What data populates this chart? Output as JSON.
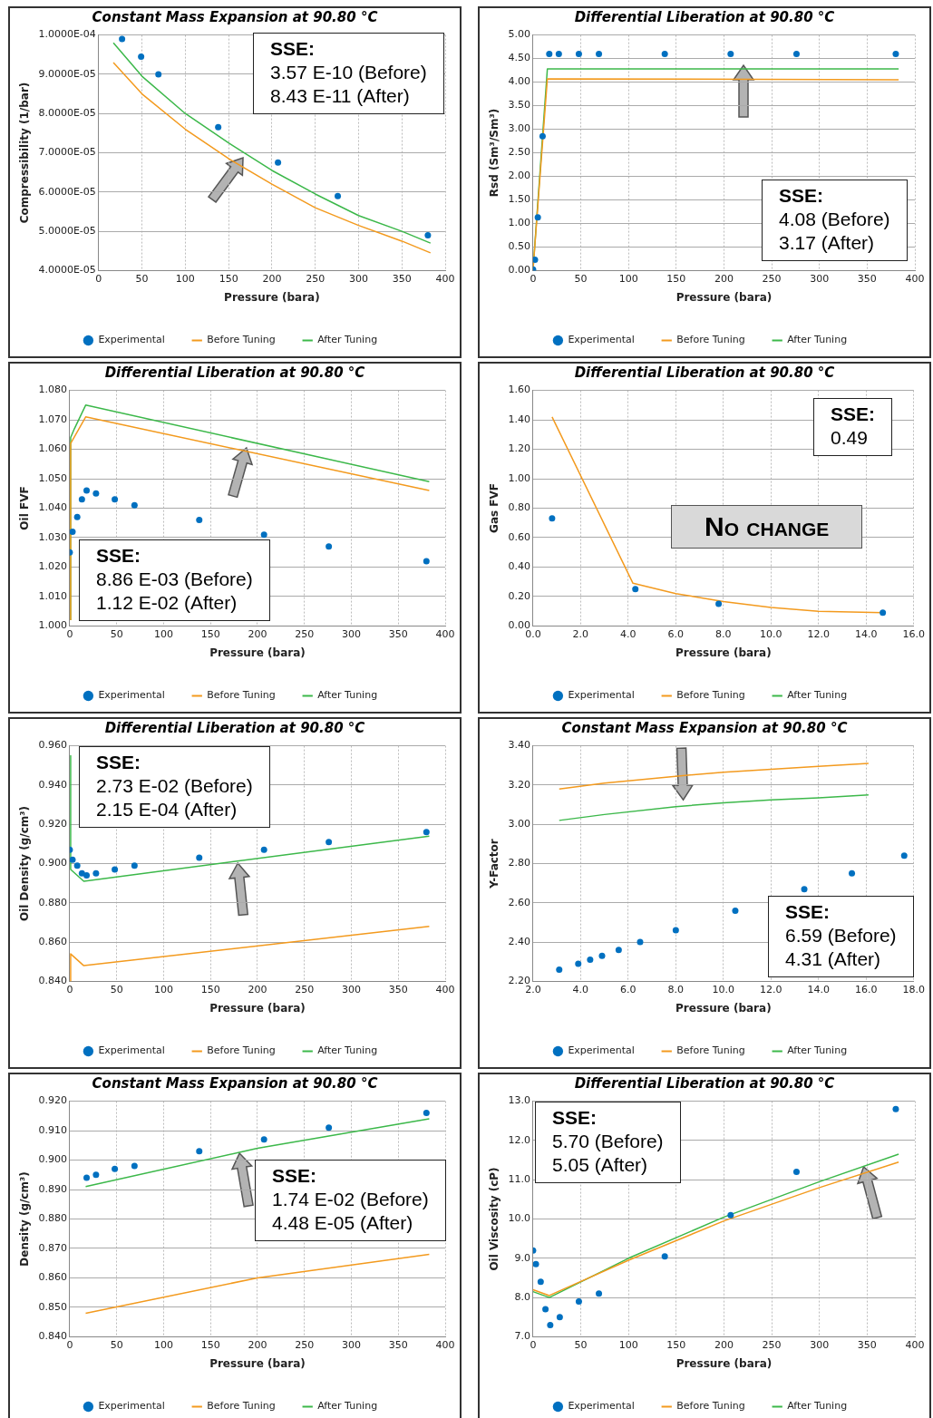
{
  "chart_data": [
    {
      "type": "line",
      "title": "Constant Mass Expansion at 90.80 °C",
      "xlabel": "Pressure (bara)",
      "ylabel": "Compressibility (1/bar)",
      "xlim": [
        0,
        400
      ],
      "xticks": [
        0,
        50,
        100,
        150,
        200,
        250,
        300,
        350,
        400
      ],
      "ylim": [
        4e-05,
        0.0001
      ],
      "yticks": [
        {
          "value": 4e-05,
          "label": "4.0000E-05"
        },
        {
          "value": 5e-05,
          "label": "5.0000E-05"
        },
        {
          "value": 6e-05,
          "label": "6.0000E-05"
        },
        {
          "value": 7e-05,
          "label": "7.0000E-05"
        },
        {
          "value": 8e-05,
          "label": "8.0000E-05"
        },
        {
          "value": 9e-05,
          "label": "9.0000E-05"
        },
        {
          "value": 0.0001,
          "label": "1.0000E-04"
        }
      ],
      "grid": true,
      "legend": "bottom",
      "annotations": [
        "SSE:\n3.57 E-10 (Before)\n8.43 E-11 (After)"
      ],
      "series": [
        {
          "name": "Experimental",
          "type": "scatter",
          "marker": "circle",
          "color": "#0070c0",
          "x": [
            27,
            49,
            69,
            138,
            207,
            276,
            380
          ],
          "values": [
            9.9e-05,
            9.45e-05,
            9e-05,
            7.65e-05,
            6.75e-05,
            5.9e-05,
            4.9e-05
          ]
        },
        {
          "name": "Before Tuning",
          "type": "line",
          "color": "#f39a1e",
          "x": [
            17,
            50,
            100,
            150,
            200,
            250,
            300,
            350,
            383
          ],
          "values": [
            9.3e-05,
            8.5e-05,
            7.6e-05,
            6.85e-05,
            6.2e-05,
            5.6e-05,
            5.15e-05,
            4.75e-05,
            4.45e-05
          ]
        },
        {
          "name": "After Tuning",
          "type": "line",
          "color": "#3cb84a",
          "x": [
            17,
            50,
            100,
            150,
            200,
            250,
            300,
            350,
            383
          ],
          "values": [
            9.8e-05,
            8.95e-05,
            8e-05,
            7.25e-05,
            6.55e-05,
            5.95e-05,
            5.4e-05,
            5e-05,
            4.7e-05
          ]
        }
      ]
    },
    {
      "type": "line",
      "title": "Differential Liberation at 90.80 °C",
      "xlabel": "Pressure (bara)",
      "ylabel": "Rsd (Sm³/Sm³)",
      "xlim": [
        0,
        400
      ],
      "xticks": [
        0,
        50,
        100,
        150,
        200,
        250,
        300,
        350,
        400
      ],
      "ylim": [
        0,
        5
      ],
      "yticks": [
        {
          "value": 0,
          "label": "0.00"
        },
        {
          "value": 0.5,
          "label": "0.50"
        },
        {
          "value": 1,
          "label": "1.00"
        },
        {
          "value": 1.5,
          "label": "1.50"
        },
        {
          "value": 2,
          "label": "2.00"
        },
        {
          "value": 2.5,
          "label": "2.50"
        },
        {
          "value": 3,
          "label": "3.00"
        },
        {
          "value": 3.5,
          "label": "3.50"
        },
        {
          "value": 4,
          "label": "4.00"
        },
        {
          "value": 4.5,
          "label": "4.50"
        },
        {
          "value": 5,
          "label": "5.00"
        }
      ],
      "grid": true,
      "legend": "bottom",
      "annotations": [
        "SSE:\n4.08 (Before)\n3.17 (After)"
      ],
      "series": [
        {
          "name": "Experimental",
          "type": "scatter",
          "marker": "circle",
          "color": "#0070c0",
          "x": [
            0,
            2,
            5,
            10,
            17,
            27,
            48,
            69,
            138,
            207,
            276,
            380
          ],
          "values": [
            0.02,
            0.23,
            1.13,
            2.85,
            4.6,
            4.6,
            4.6,
            4.6,
            4.6,
            4.6,
            4.6,
            4.6
          ]
        },
        {
          "name": "Before Tuning",
          "type": "line",
          "color": "#f39a1e",
          "x": [
            0,
            15,
            383
          ],
          "values": [
            0.02,
            4.07,
            4.05
          ]
        },
        {
          "name": "After Tuning",
          "type": "line",
          "color": "#3cb84a",
          "x": [
            0,
            15,
            383
          ],
          "values": [
            0.02,
            4.28,
            4.28
          ]
        }
      ]
    },
    {
      "type": "line",
      "title": "Differential Liberation at 90.80 °C",
      "xlabel": "Pressure (bara)",
      "ylabel": "Oil FVF",
      "xlim": [
        0,
        400
      ],
      "xticks": [
        0,
        50,
        100,
        150,
        200,
        250,
        300,
        350,
        400
      ],
      "ylim": [
        1,
        1.08
      ],
      "yticks": [
        {
          "value": 1,
          "label": "1.000"
        },
        {
          "value": 1.01,
          "label": "1.010"
        },
        {
          "value": 1.02,
          "label": "1.020"
        },
        {
          "value": 1.03,
          "label": "1.030"
        },
        {
          "value": 1.04,
          "label": "1.040"
        },
        {
          "value": 1.05,
          "label": "1.050"
        },
        {
          "value": 1.06,
          "label": "1.060"
        },
        {
          "value": 1.07,
          "label": "1.070"
        },
        {
          "value": 1.08,
          "label": "1.080"
        }
      ],
      "grid": true,
      "legend": "bottom",
      "annotations": [
        "SSE:\n8.86 E-03 (Before)\n1.12 E-02 (After)"
      ],
      "series": [
        {
          "name": "Experimental",
          "type": "scatter",
          "marker": "circle",
          "color": "#0070c0",
          "x": [
            0,
            3,
            8,
            13,
            18,
            28,
            48,
            69,
            138,
            207,
            276,
            380
          ],
          "values": [
            1.025,
            1.032,
            1.037,
            1.043,
            1.046,
            1.045,
            1.043,
            1.041,
            1.036,
            1.031,
            1.027,
            1.022
          ]
        },
        {
          "name": "Before Tuning",
          "type": "line",
          "color": "#f39a1e",
          "x": [
            1,
            1,
            17,
            383
          ],
          "values": [
            1.002,
            1.062,
            1.071,
            1.046
          ]
        },
        {
          "name": "After Tuning",
          "type": "line",
          "color": "#3cb84a",
          "x": [
            1,
            1,
            5,
            17,
            383
          ],
          "values": [
            1.002,
            1.064,
            1.067,
            1.075,
            1.049
          ]
        }
      ]
    },
    {
      "type": "line",
      "title": "Differential Liberation at 90.80 °C",
      "xlabel": "Pressure (bara)",
      "ylabel": "Gas FVF",
      "xlim": [
        0,
        16
      ],
      "xticks": [
        {
          "value": 0,
          "label": "0.0"
        },
        {
          "value": 2,
          "label": "2.0"
        },
        {
          "value": 4,
          "label": "4.0"
        },
        {
          "value": 6,
          "label": "6.0"
        },
        {
          "value": 8,
          "label": "8.0"
        },
        {
          "value": 10,
          "label": "10.0"
        },
        {
          "value": 12,
          "label": "12.0"
        },
        {
          "value": 14,
          "label": "14.0"
        },
        {
          "value": 16,
          "label": "16.0"
        }
      ],
      "ylim": [
        0,
        1.6
      ],
      "yticks": [
        {
          "value": 0,
          "label": "0.00"
        },
        {
          "value": 0.2,
          "label": "0.20"
        },
        {
          "value": 0.4,
          "label": "0.40"
        },
        {
          "value": 0.6,
          "label": "0.60"
        },
        {
          "value": 0.8,
          "label": "0.80"
        },
        {
          "value": 1,
          "label": "1.00"
        },
        {
          "value": 1.2,
          "label": "1.20"
        },
        {
          "value": 1.4,
          "label": "1.40"
        },
        {
          "value": 1.6,
          "label": "1.60"
        }
      ],
      "grid": true,
      "legend": "bottom",
      "annotations": [
        "SSE:\n0.49",
        "No change"
      ],
      "series": [
        {
          "name": "Experimental",
          "type": "scatter",
          "marker": "circle",
          "color": "#0070c0",
          "x": [
            0.8,
            4.3,
            7.8,
            14.7
          ],
          "values": [
            0.73,
            0.25,
            0.15,
            0.09
          ]
        },
        {
          "name": "Before Tuning",
          "type": "line",
          "color": "#f39a1e",
          "x": [
            0.8,
            4.2,
            6,
            8,
            10,
            12,
            14.7
          ],
          "values": [
            1.42,
            0.29,
            0.22,
            0.165,
            0.125,
            0.1,
            0.09
          ]
        },
        {
          "name": "After Tuning",
          "type": "line",
          "color": "#3cb84a"
        }
      ]
    },
    {
      "type": "line",
      "title": "Differential Liberation at 90.80 °C",
      "xlabel": "Pressure (bara)",
      "ylabel": "Oil Density (g/cm³)",
      "xlim": [
        0,
        400
      ],
      "xticks": [
        0,
        50,
        100,
        150,
        200,
        250,
        300,
        350,
        400
      ],
      "ylim": [
        0.84,
        0.96
      ],
      "yticks": [
        {
          "value": 0.84,
          "label": "0.840"
        },
        {
          "value": 0.86,
          "label": "0.860"
        },
        {
          "value": 0.88,
          "label": "0.880"
        },
        {
          "value": 0.9,
          "label": "0.900"
        },
        {
          "value": 0.92,
          "label": "0.920"
        },
        {
          "value": 0.94,
          "label": "0.940"
        },
        {
          "value": 0.96,
          "label": "0.960"
        }
      ],
      "grid": true,
      "legend": "bottom",
      "annotations": [
        "SSE:\n2.73 E-02 (Before)\n2.15 E-04 (After)"
      ],
      "series": [
        {
          "name": "Experimental",
          "type": "scatter",
          "marker": "circle",
          "color": "#0070c0",
          "x": [
            0,
            3,
            8,
            13,
            18,
            28,
            48,
            69,
            138,
            207,
            276,
            380
          ],
          "values": [
            0.907,
            0.902,
            0.899,
            0.895,
            0.894,
            0.895,
            0.897,
            0.899,
            0.903,
            0.907,
            0.911,
            0.916
          ]
        },
        {
          "name": "Before Tuning",
          "type": "line",
          "color": "#f39a1e",
          "x": [
            1,
            1,
            15,
            383
          ],
          "values": [
            0.84,
            0.854,
            0.848,
            0.868
          ]
        },
        {
          "name": "After Tuning",
          "type": "line",
          "color": "#3cb84a",
          "x": [
            1,
            1,
            15,
            383
          ],
          "values": [
            0.955,
            0.897,
            0.891,
            0.914
          ]
        }
      ]
    },
    {
      "type": "line",
      "title": "Constant Mass Expansion at 90.80 °C",
      "xlabel": "Pressure (bara)",
      "ylabel": "Y-Factor",
      "xlim": [
        2,
        18
      ],
      "xticks": [
        {
          "value": 2,
          "label": "2.0"
        },
        {
          "value": 4,
          "label": "4.0"
        },
        {
          "value": 6,
          "label": "6.0"
        },
        {
          "value": 8,
          "label": "8.0"
        },
        {
          "value": 10,
          "label": "10.0"
        },
        {
          "value": 12,
          "label": "12.0"
        },
        {
          "value": 14,
          "label": "14.0"
        },
        {
          "value": 16,
          "label": "16.0"
        },
        {
          "value": 18,
          "label": "18.0"
        }
      ],
      "ylim": [
        2.2,
        3.4
      ],
      "yticks": [
        {
          "value": 2.2,
          "label": "2.20"
        },
        {
          "value": 2.4,
          "label": "2.40"
        },
        {
          "value": 2.6,
          "label": "2.60"
        },
        {
          "value": 2.8,
          "label": "2.80"
        },
        {
          "value": 3,
          "label": "3.00"
        },
        {
          "value": 3.2,
          "label": "3.20"
        },
        {
          "value": 3.4,
          "label": "3.40"
        }
      ],
      "grid": true,
      "legend": "bottom",
      "annotations": [
        "SSE:\n6.59 (Before)\n4.31 (After)"
      ],
      "series": [
        {
          "name": "Experimental",
          "type": "scatter",
          "marker": "circle",
          "color": "#0070c0",
          "x": [
            3.1,
            3.9,
            4.4,
            4.9,
            5.6,
            6.5,
            8,
            10.5,
            13.4,
            15.4,
            17.6
          ],
          "values": [
            2.26,
            2.29,
            2.31,
            2.33,
            2.36,
            2.4,
            2.46,
            2.56,
            2.67,
            2.75,
            2.84
          ]
        },
        {
          "name": "Before Tuning",
          "type": "line",
          "color": "#f39a1e",
          "x": [
            3.1,
            5,
            8,
            10,
            12,
            14,
            16.1
          ],
          "values": [
            3.18,
            3.21,
            3.245,
            3.265,
            3.28,
            3.295,
            3.31
          ]
        },
        {
          "name": "After Tuning",
          "type": "line",
          "color": "#3cb84a",
          "x": [
            3.1,
            5,
            8,
            10,
            12,
            14,
            16.1
          ],
          "values": [
            3.02,
            3.05,
            3.09,
            3.11,
            3.125,
            3.135,
            3.15
          ]
        }
      ]
    },
    {
      "type": "line",
      "title": "Constant Mass Expansion at 90.80 °C",
      "xlabel": "Pressure (bara)",
      "ylabel": "Density (g/cm³)",
      "xlim": [
        0,
        400
      ],
      "xticks": [
        0,
        50,
        100,
        150,
        200,
        250,
        300,
        350,
        400
      ],
      "ylim": [
        0.84,
        0.92
      ],
      "yticks": [
        {
          "value": 0.84,
          "label": "0.840"
        },
        {
          "value": 0.85,
          "label": "0.850"
        },
        {
          "value": 0.86,
          "label": "0.860"
        },
        {
          "value": 0.87,
          "label": "0.870"
        },
        {
          "value": 0.88,
          "label": "0.880"
        },
        {
          "value": 0.89,
          "label": "0.890"
        },
        {
          "value": 0.9,
          "label": "0.900"
        },
        {
          "value": 0.91,
          "label": "0.910"
        },
        {
          "value": 0.92,
          "label": "0.920"
        }
      ],
      "grid": true,
      "legend": "bottom",
      "annotations": [
        "SSE:\n1.74 E-02 (Before)\n4.48 E-05 (After)"
      ],
      "series": [
        {
          "name": "Experimental",
          "type": "scatter",
          "marker": "circle",
          "color": "#0070c0",
          "x": [
            18,
            28,
            48,
            69,
            138,
            207,
            276,
            380
          ],
          "values": [
            0.894,
            0.895,
            0.897,
            0.898,
            0.903,
            0.907,
            0.911,
            0.916
          ]
        },
        {
          "name": "Before Tuning",
          "type": "line",
          "color": "#f39a1e",
          "x": [
            17,
            200,
            383
          ],
          "values": [
            0.848,
            0.86,
            0.868
          ]
        },
        {
          "name": "After Tuning",
          "type": "line",
          "color": "#3cb84a",
          "x": [
            17,
            200,
            383
          ],
          "values": [
            0.891,
            0.904,
            0.914
          ]
        }
      ]
    },
    {
      "type": "line",
      "title": "Differential Liberation at 90.80 °C",
      "xlabel": "Pressure (bara)",
      "ylabel": "Oil Viscosity (cP)",
      "xlim": [
        0,
        400
      ],
      "xticks": [
        0,
        50,
        100,
        150,
        200,
        250,
        300,
        350,
        400
      ],
      "ylim": [
        7,
        13
      ],
      "yticks": [
        {
          "value": 7,
          "label": "7.0"
        },
        {
          "value": 8,
          "label": "8.0"
        },
        {
          "value": 9,
          "label": "9.0"
        },
        {
          "value": 10,
          "label": "10.0"
        },
        {
          "value": 11,
          "label": "11.0"
        },
        {
          "value": 12,
          "label": "12.0"
        },
        {
          "value": 13,
          "label": "13.0"
        }
      ],
      "grid": true,
      "legend": "bottom",
      "annotations": [
        "SSE:\n5.70 (Before)\n5.05 (After)"
      ],
      "series": [
        {
          "name": "Experimental",
          "type": "scatter",
          "marker": "circle",
          "color": "#0070c0",
          "x": [
            0,
            3,
            8,
            13,
            18,
            28,
            48,
            69,
            138,
            207,
            276,
            380
          ],
          "values": [
            9.2,
            8.85,
            8.4,
            7.7,
            7.3,
            7.5,
            7.9,
            8.1,
            9.05,
            10.1,
            11.2,
            12.8
          ]
        },
        {
          "name": "Before Tuning",
          "type": "line",
          "color": "#f39a1e",
          "x": [
            0,
            17,
            100,
            200,
            300,
            383
          ],
          "values": [
            8.2,
            8.05,
            8.95,
            9.95,
            10.8,
            11.45
          ]
        },
        {
          "name": "After Tuning",
          "type": "line",
          "color": "#3cb84a",
          "x": [
            0,
            17,
            100,
            200,
            300,
            383
          ],
          "values": [
            8.15,
            8,
            9,
            10.05,
            10.95,
            11.65
          ]
        }
      ]
    }
  ]
}
